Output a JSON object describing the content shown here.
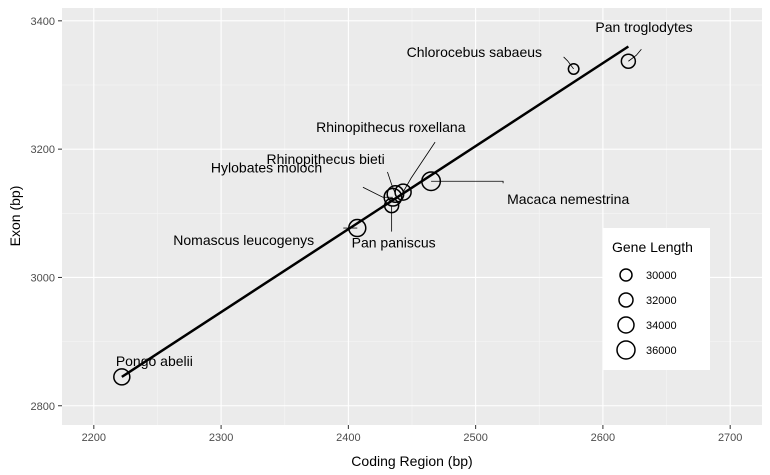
{
  "chart_data": {
    "type": "scatter",
    "xlabel": "Coding Region (bp)",
    "ylabel": "Exon (bp)",
    "xlim": [
      2175,
      2725
    ],
    "ylim": [
      2770,
      3420
    ],
    "x_ticks": [
      2200,
      2300,
      2400,
      2500,
      2600,
      2700
    ],
    "y_ticks": [
      2800,
      3000,
      3200,
      3400
    ],
    "grid": true,
    "legend": {
      "title": "Gene Length",
      "position": "right",
      "entries": [
        {
          "label": "30000",
          "size": 30000
        },
        {
          "label": "32000",
          "size": 32000
        },
        {
          "label": "34000",
          "size": 34000
        },
        {
          "label": "36000",
          "size": 36000
        }
      ]
    },
    "trend_line": {
      "x": [
        2222,
        2620
      ],
      "y": [
        2845,
        3360
      ]
    },
    "points": [
      {
        "name": "Pan troglodytes",
        "x": 2620,
        "y": 3337,
        "size": 32000
      },
      {
        "name": "Chlorocebus sabaeus",
        "x": 2577,
        "y": 3325,
        "size": 28500
      },
      {
        "name": "Rhinopithecus roxellana",
        "x": 2443,
        "y": 3133,
        "size": 34000
      },
      {
        "name": "Rhinopithecus bieti",
        "x": 2437,
        "y": 3130,
        "size": 34500
      },
      {
        "name": "Macaca nemestrina",
        "x": 2465,
        "y": 3150,
        "size": 36500
      },
      {
        "name": "Hylobates moloch",
        "x": 2435,
        "y": 3125,
        "size": 35500
      },
      {
        "name": "Pan paniscus",
        "x": 2434,
        "y": 3112,
        "size": 32000
      },
      {
        "name": "Nomascus leucogenys",
        "x": 2407,
        "y": 3077,
        "size": 35000
      },
      {
        "name": "Pongo abelii",
        "x": 2222,
        "y": 2845,
        "size": 34000
      }
    ]
  }
}
